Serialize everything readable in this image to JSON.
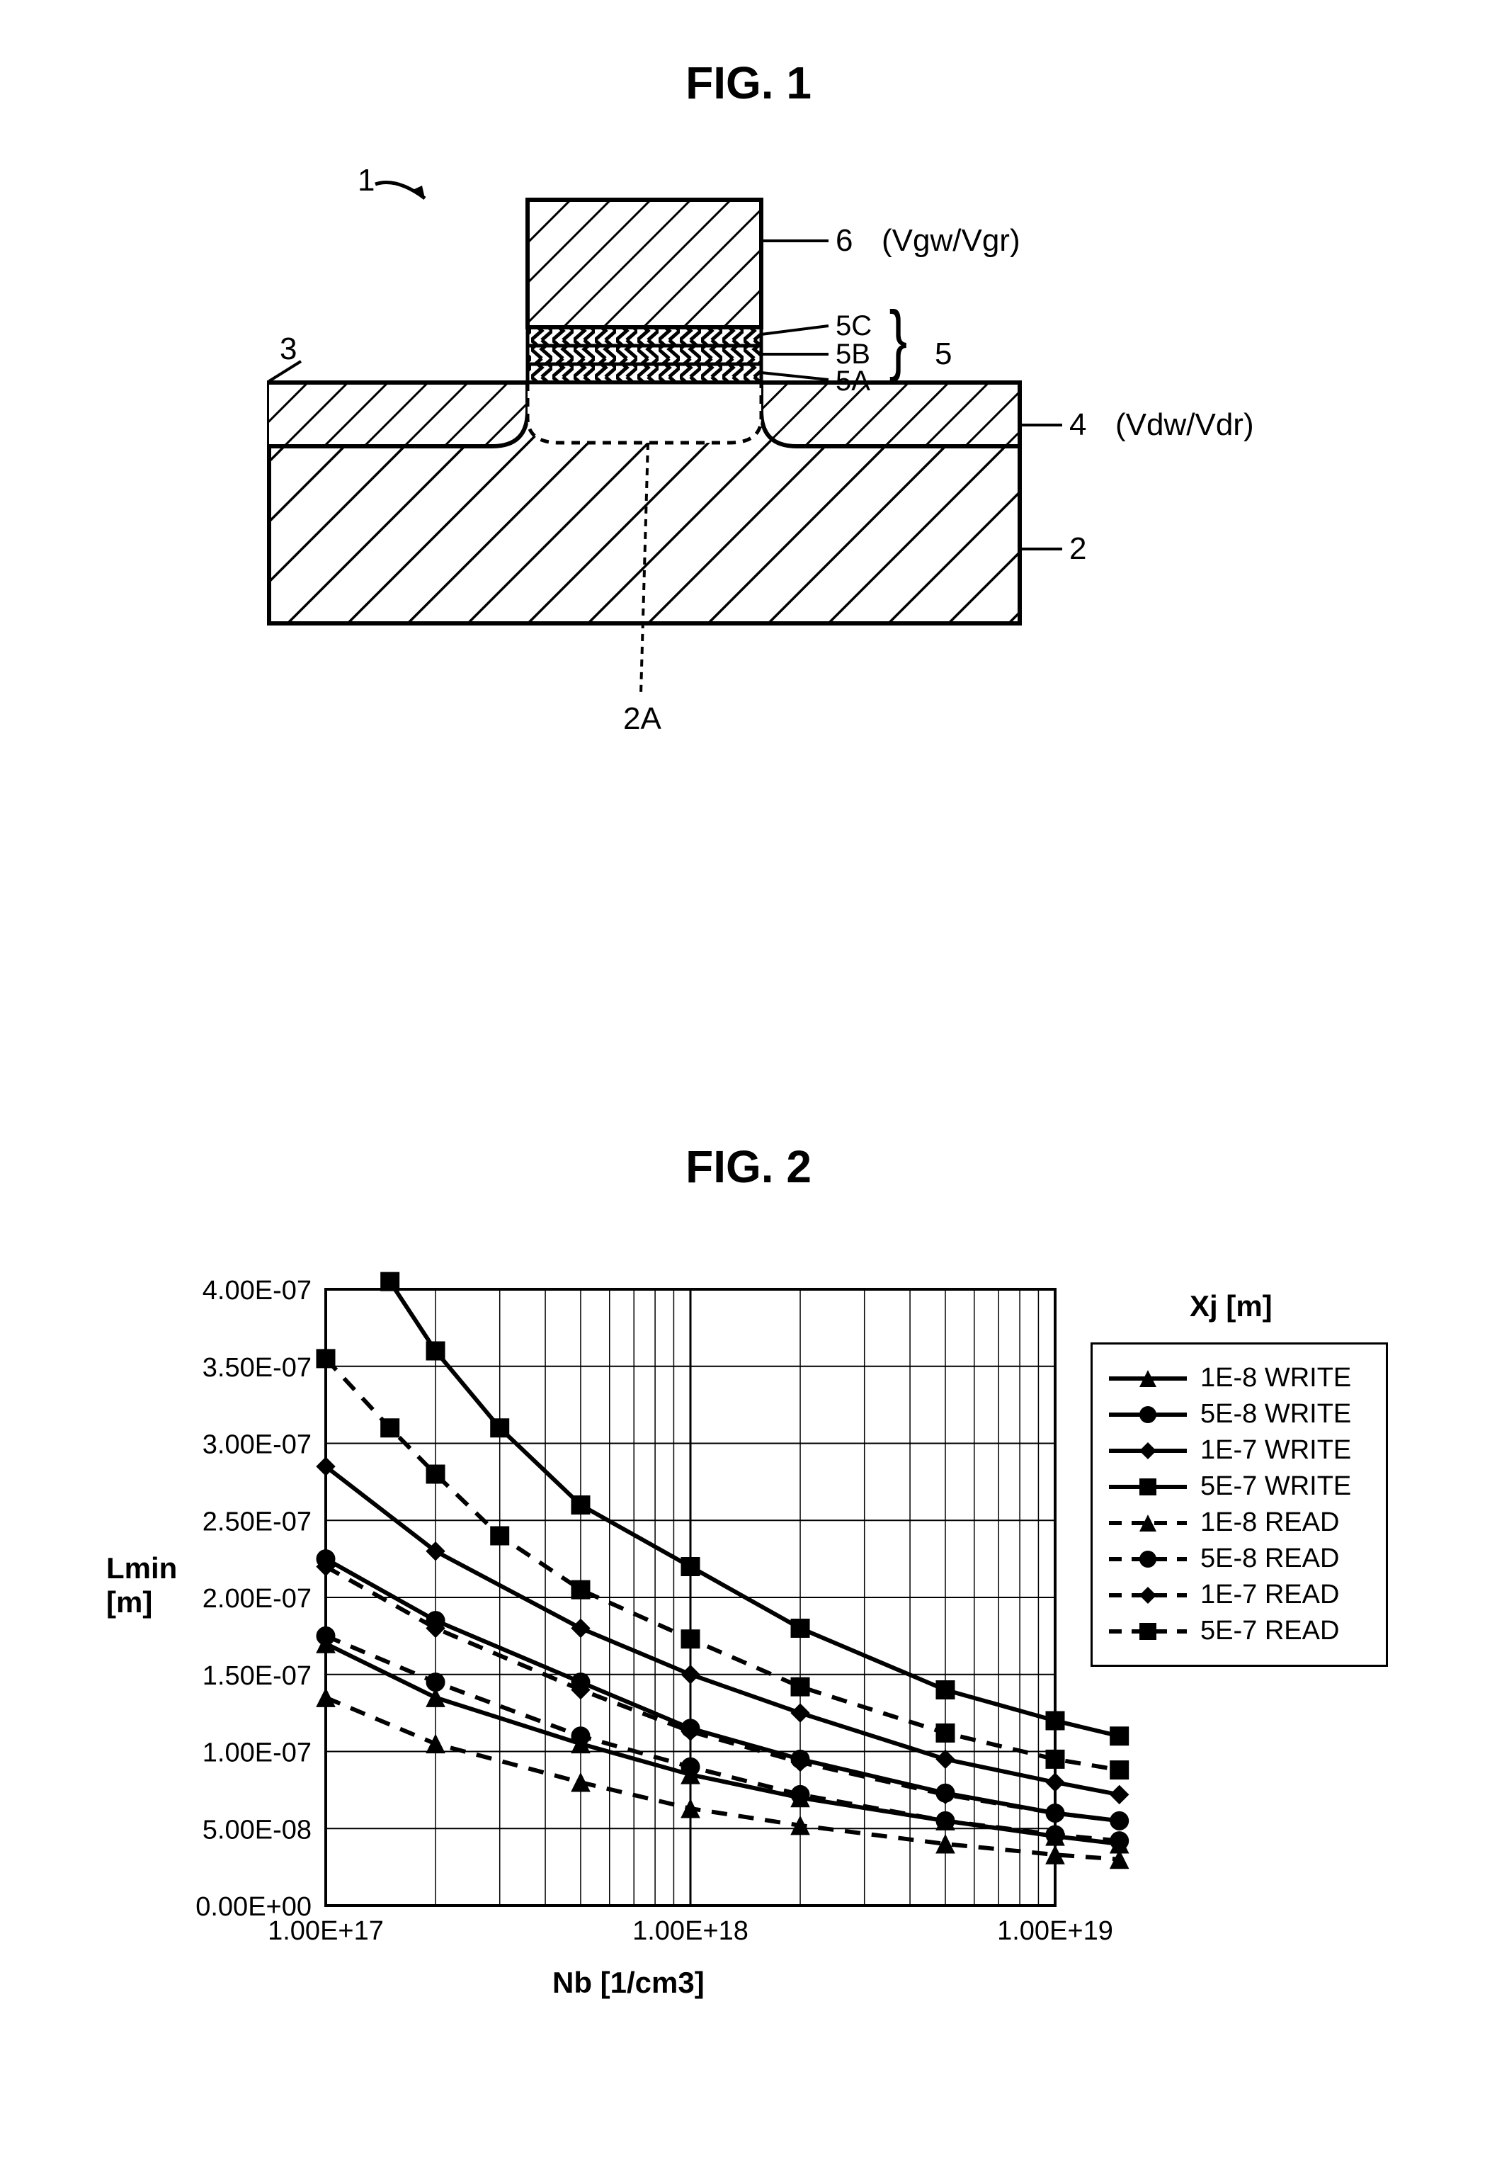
{
  "fig1": {
    "title": "FIG. 1",
    "labels": {
      "ref1": "1",
      "ref2": "2",
      "ref2A": "2A",
      "ref3": "3",
      "ref4": "4",
      "ref5": "5",
      "ref5A": "5A",
      "ref5B": "5B",
      "ref5C": "5C",
      "ref6": "6",
      "vg": "(Vgw/Vgr)",
      "vd": "(Vdw/Vdr)"
    },
    "colors": {
      "stroke": "#000000",
      "hatch": "#000000",
      "bg": "#ffffff"
    }
  },
  "fig2": {
    "title": "FIG. 2",
    "xlabel": "Nb [1/cm3]",
    "ylabel": "Lmin\n[m]",
    "legend_title": "Xj [m]",
    "xlim": [
      1e+17,
      1e+19
    ],
    "ylim": [
      0,
      4e-07
    ],
    "xticks": [
      "1.00E+17",
      "1.00E+18",
      "1.00E+19"
    ],
    "yticks": [
      "0.00E+00",
      "5.00E-08",
      "1.00E-07",
      "1.50E-07",
      "2.00E-07",
      "2.50E-07",
      "3.00E-07",
      "3.50E-07",
      "4.00E-07"
    ],
    "plot_bg": "#ffffff",
    "grid_color": "#000000",
    "series": [
      {
        "label": "1E-8 WRITE",
        "marker": "triangle",
        "dash": "solid",
        "color": "#000000",
        "x": [
          1e+17,
          2e+17,
          5e+17,
          1e+18,
          2e+18,
          5e+18,
          1e+19,
          1.5e+19
        ],
        "y": [
          1.7e-07,
          1.35e-07,
          1.05e-07,
          8.5e-08,
          7e-08,
          5.5e-08,
          4.5e-08,
          4e-08
        ]
      },
      {
        "label": "5E-8 WRITE",
        "marker": "circle",
        "dash": "solid",
        "color": "#000000",
        "x": [
          1e+17,
          2e+17,
          5e+17,
          1e+18,
          2e+18,
          5e+18,
          1e+19,
          1.5e+19
        ],
        "y": [
          2.25e-07,
          1.85e-07,
          1.45e-07,
          1.15e-07,
          9.5e-08,
          7.3e-08,
          6e-08,
          5.5e-08
        ]
      },
      {
        "label": "1E-7 WRITE",
        "marker": "diamond",
        "dash": "solid",
        "color": "#000000",
        "x": [
          1e+17,
          2e+17,
          5e+17,
          1e+18,
          2e+18,
          5e+18,
          1e+19,
          1.5e+19
        ],
        "y": [
          2.85e-07,
          2.3e-07,
          1.8e-07,
          1.5e-07,
          1.25e-07,
          9.5e-08,
          8e-08,
          7.2e-08
        ]
      },
      {
        "label": "5E-7 WRITE",
        "marker": "square",
        "dash": "solid",
        "color": "#000000",
        "x": [
          1.5e+17,
          2e+17,
          3e+17,
          5e+17,
          1e+18,
          2e+18,
          5e+18,
          1e+19,
          1.5e+19
        ],
        "y": [
          4.05e-07,
          3.6e-07,
          3.1e-07,
          2.6e-07,
          2.2e-07,
          1.8e-07,
          1.4e-07,
          1.2e-07,
          1.1e-07
        ]
      },
      {
        "label": "1E-8 READ",
        "marker": "triangle",
        "dash": "dash",
        "color": "#000000",
        "x": [
          1e+17,
          2e+17,
          5e+17,
          1e+18,
          2e+18,
          5e+18,
          1e+19,
          1.5e+19
        ],
        "y": [
          1.35e-07,
          1.05e-07,
          8e-08,
          6.3e-08,
          5.2e-08,
          4e-08,
          3.3e-08,
          3e-08
        ]
      },
      {
        "label": "5E-8 READ",
        "marker": "circle",
        "dash": "dash",
        "color": "#000000",
        "x": [
          1e+17,
          2e+17,
          5e+17,
          1e+18,
          2e+18,
          5e+18,
          1e+19,
          1.5e+19
        ],
        "y": [
          1.75e-07,
          1.45e-07,
          1.1e-07,
          9e-08,
          7.2e-08,
          5.5e-08,
          4.6e-08,
          4.2e-08
        ]
      },
      {
        "label": "1E-7 READ",
        "marker": "diamond",
        "dash": "dash",
        "color": "#000000",
        "x": [
          1e+17,
          2e+17,
          5e+17,
          1e+18,
          2e+18,
          5e+18,
          1e+19,
          1.5e+19
        ],
        "y": [
          2.2e-07,
          1.8e-07,
          1.4e-07,
          1.13e-07,
          9.3e-08,
          7.2e-08,
          6e-08,
          5.5e-08
        ]
      },
      {
        "label": "5E-7 READ",
        "marker": "square",
        "dash": "dash",
        "color": "#000000",
        "x": [
          1e+17,
          1.5e+17,
          2e+17,
          3e+17,
          5e+17,
          1e+18,
          2e+18,
          5e+18,
          1e+19,
          1.5e+19
        ],
        "y": [
          3.55e-07,
          3.1e-07,
          2.8e-07,
          2.4e-07,
          2.05e-07,
          1.73e-07,
          1.42e-07,
          1.12e-07,
          9.5e-08,
          8.8e-08
        ]
      }
    ]
  }
}
